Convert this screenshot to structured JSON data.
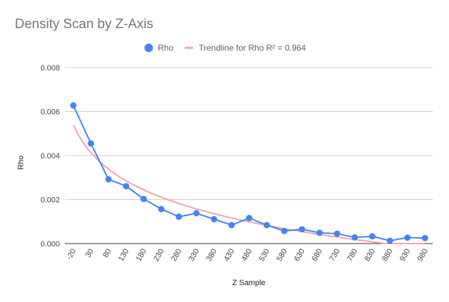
{
  "chart_data": {
    "type": "line",
    "title": "Density Scan by Z-Axis",
    "xlabel": "Z Sample",
    "ylabel": "Rho",
    "categories": [
      "-20",
      "30",
      "80",
      "130",
      "180",
      "230",
      "280",
      "330",
      "380",
      "430",
      "480",
      "530",
      "580",
      "630",
      "680",
      "730",
      "780",
      "830",
      "880",
      "930",
      "980"
    ],
    "ylim": [
      0,
      0.008
    ],
    "yticks": [
      "0.000",
      "0.002",
      "0.004",
      "0.006",
      "0.008"
    ],
    "ytick_values": [
      0,
      0.002,
      0.004,
      0.006,
      0.008
    ],
    "grid": true,
    "legend_position": "top",
    "series": [
      {
        "name": "Rho",
        "color": "#4285f4",
        "marker": "circle",
        "values": [
          0.00628,
          0.00455,
          0.00292,
          0.00261,
          0.00203,
          0.00157,
          0.00122,
          0.00138,
          0.00111,
          0.00084,
          0.00116,
          0.00084,
          0.00057,
          0.00065,
          0.00049,
          0.00045,
          0.00028,
          0.00033,
          0.00013,
          0.00027,
          0.00025
        ]
      }
    ],
    "trendline": {
      "name": "Trendline for Rho R² = 0.964",
      "color": "#f4a3a3",
      "type": "logarithmic",
      "r_squared": 0.964
    }
  }
}
